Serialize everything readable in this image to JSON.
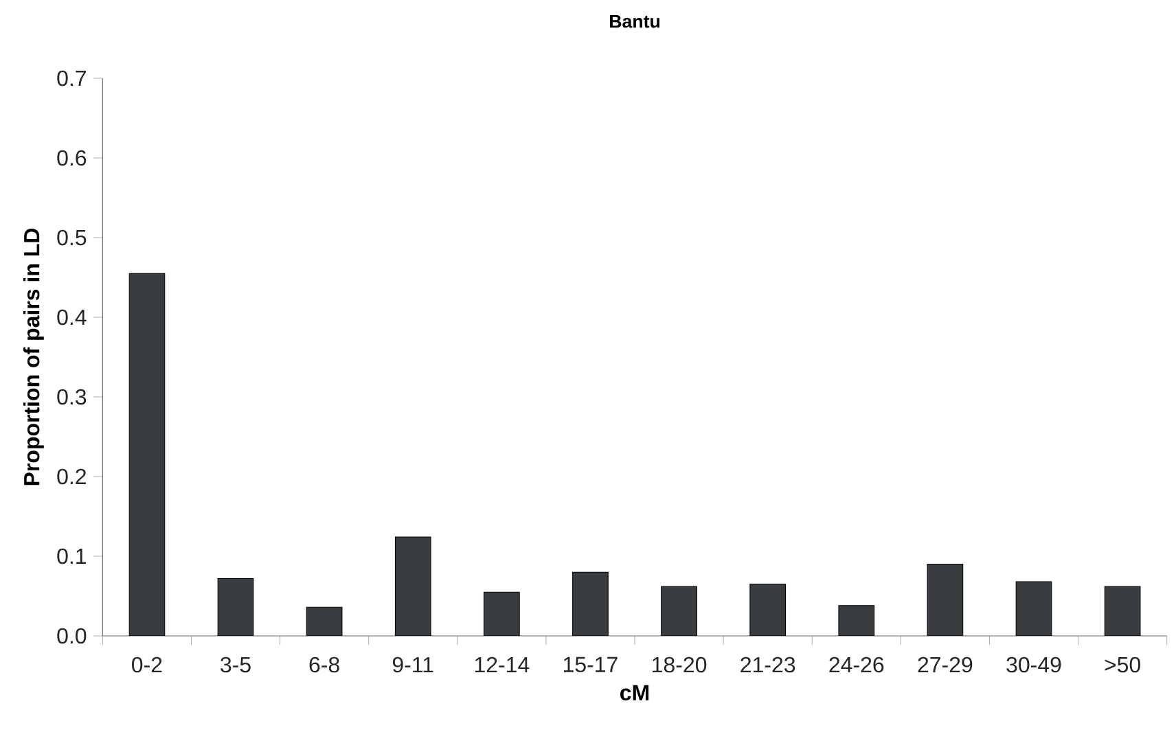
{
  "chart_data": {
    "type": "bar",
    "title": "Bantu",
    "xlabel": "cM",
    "ylabel": "Proportion of pairs in LD",
    "categories": [
      "0-2",
      "3-5",
      "6-8",
      "9-11",
      "12-14",
      "15-17",
      "18-20",
      "21-23",
      "24-26",
      "27-29",
      "30-49",
      ">50"
    ],
    "values": [
      0.455,
      0.072,
      0.036,
      0.124,
      0.055,
      0.08,
      0.062,
      0.065,
      0.038,
      0.09,
      0.068,
      0.062
    ],
    "color": "#3a3d40",
    "ylim": [
      0,
      0.7
    ],
    "yticks": [
      {
        "value": 0,
        "label": "0.0"
      },
      0.1,
      0.2,
      0.3,
      0.4,
      0.5,
      0.6,
      0.7
    ],
    "grid": false
  }
}
